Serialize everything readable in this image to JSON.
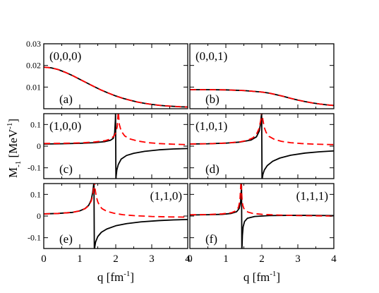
{
  "figure": {
    "ylabel": {
      "main": "M",
      "sub": "-1",
      "unit_open": " [MeV",
      "unit_sup": "-1",
      "unit_close": "]"
    },
    "xlabel": {
      "main": "q [fm",
      "sup": "-1",
      "close": "]"
    }
  },
  "series_styles": {
    "full": {
      "color": "#000000",
      "dash": "solid"
    },
    "approx": {
      "color": "#ff0000",
      "dash": "dashed"
    }
  },
  "chart_data": [
    {
      "type": "line",
      "panel": "(a)",
      "label": "(0,0,0)",
      "label_side": "left",
      "xlim": [
        0,
        4
      ],
      "ylim": [
        0,
        0.03
      ],
      "xticks": [
        0,
        1,
        2,
        3,
        4
      ],
      "yticks": [
        0.01,
        0.02,
        0.03
      ],
      "yticklabels": [
        "0.01",
        "0.02",
        "0.03"
      ],
      "series": [
        {
          "style": "full",
          "x": [
            0,
            0.2,
            0.4,
            0.6,
            0.8,
            1.0,
            1.2,
            1.4,
            1.6,
            1.8,
            2.0,
            2.2,
            2.4,
            2.6,
            2.8,
            3.0,
            3.2,
            3.4,
            3.6,
            3.8,
            4.0
          ],
          "y": [
            0.0192,
            0.0189,
            0.0181,
            0.0168,
            0.0153,
            0.0136,
            0.0119,
            0.0102,
            0.0086,
            0.0072,
            0.0059,
            0.0048,
            0.0039,
            0.0031,
            0.0025,
            0.002,
            0.0016,
            0.0013,
            0.0011,
            0.0009,
            0.0008
          ]
        },
        {
          "style": "approx",
          "x": [
            0,
            0.2,
            0.4,
            0.6,
            0.8,
            1.0,
            1.2,
            1.4,
            1.6,
            1.8,
            2.0,
            2.2,
            2.4,
            2.6,
            2.8,
            3.0,
            3.2,
            3.4,
            3.6,
            3.8,
            4.0
          ],
          "y": [
            0.0192,
            0.0189,
            0.0181,
            0.0168,
            0.0153,
            0.0136,
            0.0119,
            0.0102,
            0.0086,
            0.0072,
            0.0059,
            0.0048,
            0.0039,
            0.0031,
            0.0025,
            0.002,
            0.0016,
            0.0013,
            0.0011,
            0.0009,
            0.0008
          ]
        }
      ]
    },
    {
      "type": "line",
      "panel": "(b)",
      "label": "(0,0,1)",
      "label_side": "left",
      "xlim": [
        0,
        4
      ],
      "ylim": [
        0,
        0.03
      ],
      "xticks": [
        0,
        1,
        2,
        3,
        4
      ],
      "yticks": [
        0.01,
        0.02,
        0.03
      ],
      "yticklabels": [],
      "series": [
        {
          "style": "full",
          "x": [
            0,
            0.5,
            1.0,
            1.5,
            1.8,
            2.0,
            2.2,
            2.4,
            2.6,
            2.8,
            3.0,
            3.2,
            3.4,
            3.6,
            3.8,
            4.0
          ],
          "y": [
            0.0088,
            0.0088,
            0.0087,
            0.0084,
            0.008,
            0.0077,
            0.0072,
            0.0065,
            0.0057,
            0.0048,
            0.004,
            0.0033,
            0.0027,
            0.0022,
            0.0018,
            0.0015
          ]
        },
        {
          "style": "approx",
          "x": [
            0,
            0.5,
            1.0,
            1.5,
            1.8,
            2.0,
            2.2,
            2.4,
            2.6,
            2.8,
            3.0,
            3.2,
            3.4,
            3.6,
            3.8,
            4.0
          ],
          "y": [
            0.0088,
            0.0088,
            0.0087,
            0.0084,
            0.008,
            0.0077,
            0.0072,
            0.0065,
            0.0057,
            0.0048,
            0.004,
            0.0033,
            0.0027,
            0.0022,
            0.0018,
            0.0015
          ]
        }
      ]
    },
    {
      "type": "line",
      "panel": "(c)",
      "label": "(1,0,0)",
      "label_side": "left",
      "xlim": [
        0,
        4
      ],
      "ylim": [
        -0.15,
        0.15
      ],
      "xticks": [
        0,
        1,
        2,
        3,
        4
      ],
      "yticks": [
        -0.1,
        0,
        0.1
      ],
      "yticklabels": [
        "-0.1",
        "0",
        "0.1"
      ],
      "series": [
        {
          "style": "full",
          "x": [
            0,
            0.5,
            1.0,
            1.4,
            1.7,
            1.85,
            1.93,
            1.97,
            1.99,
            1.995,
            2.005,
            2.01,
            2.03,
            2.07,
            2.15,
            2.3,
            2.5,
            2.8,
            3.2,
            3.6,
            4.0
          ],
          "y": [
            0.01,
            0.011,
            0.013,
            0.016,
            0.021,
            0.027,
            0.036,
            0.06,
            0.12,
            0.16,
            -0.16,
            -0.14,
            -0.11,
            -0.085,
            -0.06,
            -0.043,
            -0.033,
            -0.024,
            -0.017,
            -0.013,
            -0.011
          ]
        },
        {
          "style": "approx",
          "x": [
            0,
            0.5,
            1.0,
            1.4,
            1.7,
            1.85,
            1.95,
            2.0,
            2.04,
            2.07,
            2.1,
            2.15,
            2.25,
            2.4,
            2.6,
            2.9,
            3.2,
            3.6,
            4.0
          ],
          "y": [
            0.012,
            0.013,
            0.015,
            0.019,
            0.025,
            0.033,
            0.046,
            0.062,
            0.09,
            0.16,
            0.1,
            0.07,
            0.047,
            0.033,
            0.024,
            0.016,
            0.012,
            0.009,
            0.007
          ]
        }
      ]
    },
    {
      "type": "line",
      "panel": "(d)",
      "label": "(1,0,1)",
      "label_side": "left",
      "xlim": [
        0,
        4
      ],
      "ylim": [
        -0.15,
        0.15
      ],
      "xticks": [
        0,
        1,
        2,
        3,
        4
      ],
      "yticks": [
        -0.1,
        0,
        0.1
      ],
      "yticklabels": [],
      "series": [
        {
          "style": "full",
          "x": [
            0,
            0.5,
            1.0,
            1.4,
            1.7,
            1.85,
            1.93,
            1.97,
            1.99,
            1.995,
            2.005,
            2.01,
            2.03,
            2.07,
            2.15,
            2.3,
            2.5,
            2.8,
            3.2,
            3.6,
            4.0
          ],
          "y": [
            0.01,
            0.011,
            0.014,
            0.019,
            0.028,
            0.043,
            0.07,
            0.11,
            0.15,
            0.16,
            -0.16,
            -0.15,
            -0.13,
            -0.11,
            -0.09,
            -0.07,
            -0.055,
            -0.042,
            -0.032,
            -0.026,
            -0.022
          ]
        },
        {
          "style": "approx",
          "x": [
            0,
            0.5,
            1.0,
            1.4,
            1.6,
            1.75,
            1.85,
            1.92,
            1.97,
            2.0,
            2.03,
            2.07,
            2.12,
            2.2,
            2.35,
            2.55,
            2.8,
            3.1,
            3.5,
            4.0
          ],
          "y": [
            0.01,
            0.011,
            0.014,
            0.02,
            0.027,
            0.038,
            0.055,
            0.08,
            0.12,
            0.16,
            0.12,
            0.085,
            0.063,
            0.045,
            0.031,
            0.022,
            0.016,
            0.012,
            0.009,
            0.007
          ]
        }
      ]
    },
    {
      "type": "line",
      "panel": "(e)",
      "label": "(1,1,0)",
      "label_side": "right",
      "xlim": [
        0,
        4
      ],
      "ylim": [
        -0.15,
        0.15
      ],
      "xticks": [
        0,
        1,
        2,
        3,
        4
      ],
      "yticks": [
        -0.1,
        0,
        0.1
      ],
      "yticklabels": [
        "-0.1",
        "0",
        "0.1"
      ],
      "series": [
        {
          "style": "full",
          "x": [
            0,
            0.4,
            0.8,
            1.0,
            1.15,
            1.25,
            1.32,
            1.36,
            1.39,
            1.395,
            1.405,
            1.41,
            1.44,
            1.5,
            1.6,
            1.75,
            2.0,
            2.3,
            2.7,
            3.2,
            3.6,
            4.0
          ],
          "y": [
            0.01,
            0.012,
            0.017,
            0.024,
            0.035,
            0.05,
            0.075,
            0.11,
            0.15,
            0.16,
            -0.16,
            -0.15,
            -0.12,
            -0.095,
            -0.075,
            -0.06,
            -0.045,
            -0.035,
            -0.027,
            -0.021,
            -0.018,
            -0.016
          ]
        },
        {
          "style": "approx",
          "x": [
            0,
            0.4,
            0.8,
            1.0,
            1.15,
            1.25,
            1.32,
            1.37,
            1.4,
            1.43,
            1.46,
            1.5,
            1.55,
            1.62,
            1.75,
            1.95,
            2.2,
            2.5,
            3.0,
            3.5,
            4.0
          ],
          "y": [
            0.01,
            0.012,
            0.017,
            0.024,
            0.034,
            0.048,
            0.07,
            0.1,
            0.16,
            0.12,
            0.09,
            0.066,
            0.048,
            0.034,
            0.022,
            0.013,
            0.006,
            0.002,
            -0.002,
            -0.004,
            -0.005
          ]
        }
      ]
    },
    {
      "type": "line",
      "panel": "(f)",
      "label": "(1,1,1)",
      "label_side": "right",
      "xlim": [
        0,
        4
      ],
      "ylim": [
        -0.15,
        0.15
      ],
      "xticks": [
        0,
        1,
        2,
        3,
        4
      ],
      "yticks": [
        -0.1,
        0,
        0.1
      ],
      "yticklabels": [],
      "series": [
        {
          "style": "full",
          "x": [
            0,
            0.5,
            0.9,
            1.15,
            1.3,
            1.37,
            1.41,
            1.43,
            1.435,
            1.445,
            1.45,
            1.46,
            1.48,
            1.52,
            1.6,
            1.8,
            2.2,
            2.7,
            3.2,
            4.0
          ],
          "y": [
            0.005,
            0.006,
            0.008,
            0.012,
            0.02,
            0.035,
            0.065,
            0.12,
            0.16,
            -0.16,
            -0.14,
            -0.09,
            -0.05,
            -0.025,
            -0.01,
            -0.002,
            0.002,
            0.003,
            0.003,
            0.002
          ]
        },
        {
          "style": "approx",
          "x": [
            0,
            0.5,
            0.9,
            1.15,
            1.28,
            1.35,
            1.39,
            1.42,
            1.45,
            1.47,
            1.5,
            1.55,
            1.62,
            1.75,
            2.0,
            2.4,
            3.0,
            3.5,
            4.0
          ],
          "y": [
            0.006,
            0.007,
            0.01,
            0.015,
            0.024,
            0.04,
            0.07,
            0.16,
            0.08,
            0.05,
            0.035,
            0.025,
            0.018,
            0.012,
            0.008,
            0.005,
            0.002,
            0.001,
            0.0
          ]
        }
      ]
    }
  ]
}
